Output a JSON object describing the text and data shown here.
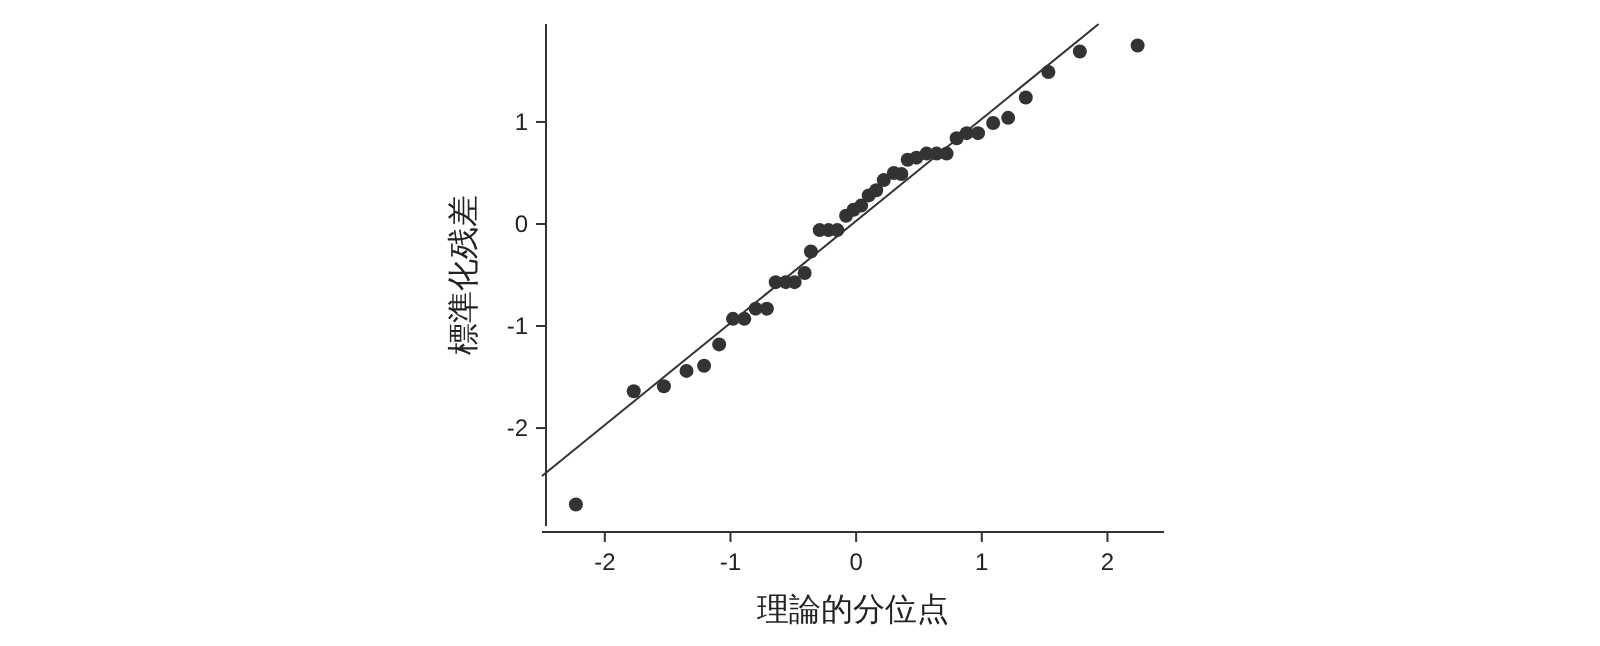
{
  "chart_data": {
    "type": "scatter",
    "xlabel": "理論的分位点",
    "ylabel": "標準化残差",
    "xlim": [
      -2.5,
      2.45
    ],
    "ylim": [
      -2.96,
      1.96
    ],
    "xticks": [
      -2,
      -1,
      0,
      1,
      2
    ],
    "yticks": [
      -2,
      -1,
      0,
      1
    ],
    "grid": false,
    "series": [
      {
        "marker": "circle",
        "color": "#333333",
        "x": [
          -2.23,
          -1.77,
          -1.53,
          -1.35,
          -1.21,
          -1.09,
          -0.98,
          -0.89,
          -0.8,
          -0.71,
          -0.64,
          -0.56,
          -0.49,
          -0.41,
          -0.36,
          -0.29,
          -0.22,
          -0.15,
          -0.08,
          -0.02,
          0.04,
          0.1,
          0.16,
          0.22,
          0.3,
          0.36,
          0.41,
          0.48,
          0.56,
          0.64,
          0.72,
          0.8,
          0.88,
          0.97,
          1.09,
          1.21,
          1.35,
          1.53,
          1.78,
          2.24
        ],
        "values": [
          -2.75,
          -1.64,
          -1.59,
          -1.44,
          -1.39,
          -1.18,
          -0.93,
          -0.93,
          -0.83,
          -0.83,
          -0.57,
          -0.57,
          -0.57,
          -0.48,
          -0.27,
          -0.06,
          -0.06,
          -0.06,
          0.08,
          0.14,
          0.18,
          0.28,
          0.33,
          0.43,
          0.5,
          0.49,
          0.63,
          0.65,
          0.69,
          0.69,
          0.69,
          0.84,
          0.89,
          0.89,
          0.99,
          1.04,
          1.24,
          1.49,
          1.69,
          1.75
        ]
      },
      {
        "type": "line",
        "marker": "none",
        "color": "#333333",
        "x": [
          -2.5,
          1.93
        ],
        "values": [
          -2.47,
          1.96
        ]
      }
    ]
  }
}
